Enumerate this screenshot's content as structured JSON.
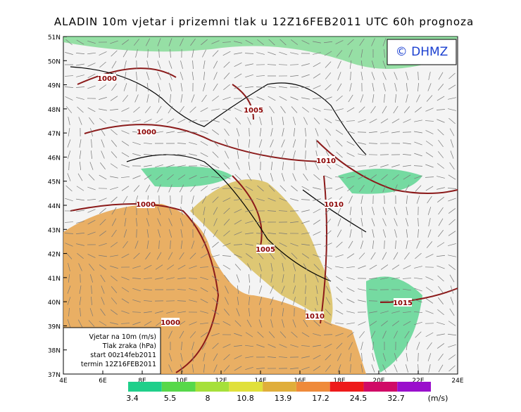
{
  "header": {
    "title": "ALADIN 10m vjetar i prizemni tlak u 12Z16FEB2011 UTC 60h prognoza"
  },
  "badge": "© DHMZ",
  "axes": {
    "lat": [
      "37N",
      "38N",
      "39N",
      "40N",
      "41N",
      "42N",
      "43N",
      "44N",
      "45N",
      "46N",
      "47N",
      "48N",
      "49N",
      "50N",
      "51N"
    ],
    "lon": [
      "4E",
      "6E",
      "8E",
      "10E",
      "12E",
      "14E",
      "16E",
      "18E",
      "20E",
      "22E",
      "24E"
    ]
  },
  "isobars": [
    "1000",
    "1005",
    "1000",
    "1010",
    "1000",
    "1010",
    "1005",
    "1015",
    "1010",
    "1000"
  ],
  "info": [
    "Vjetar na 10m (m/s)",
    "Tlak zraka (hPa)",
    "start 00z14feb2011",
    "termin 12Z16FEB2011"
  ],
  "scale": {
    "labels": [
      "3.4",
      "5.5",
      "8",
      "10.8",
      "13.9",
      "17.2",
      "24.5",
      "32.7"
    ],
    "unit": "(m/s)",
    "colors": [
      "#1fcf8a",
      "#57d84a",
      "#a6e03a",
      "#e0e03a",
      "#e0ae3a",
      "#ef8a3a",
      "#ee1a1a",
      "#d00a66",
      "#9a0fcc"
    ]
  }
}
